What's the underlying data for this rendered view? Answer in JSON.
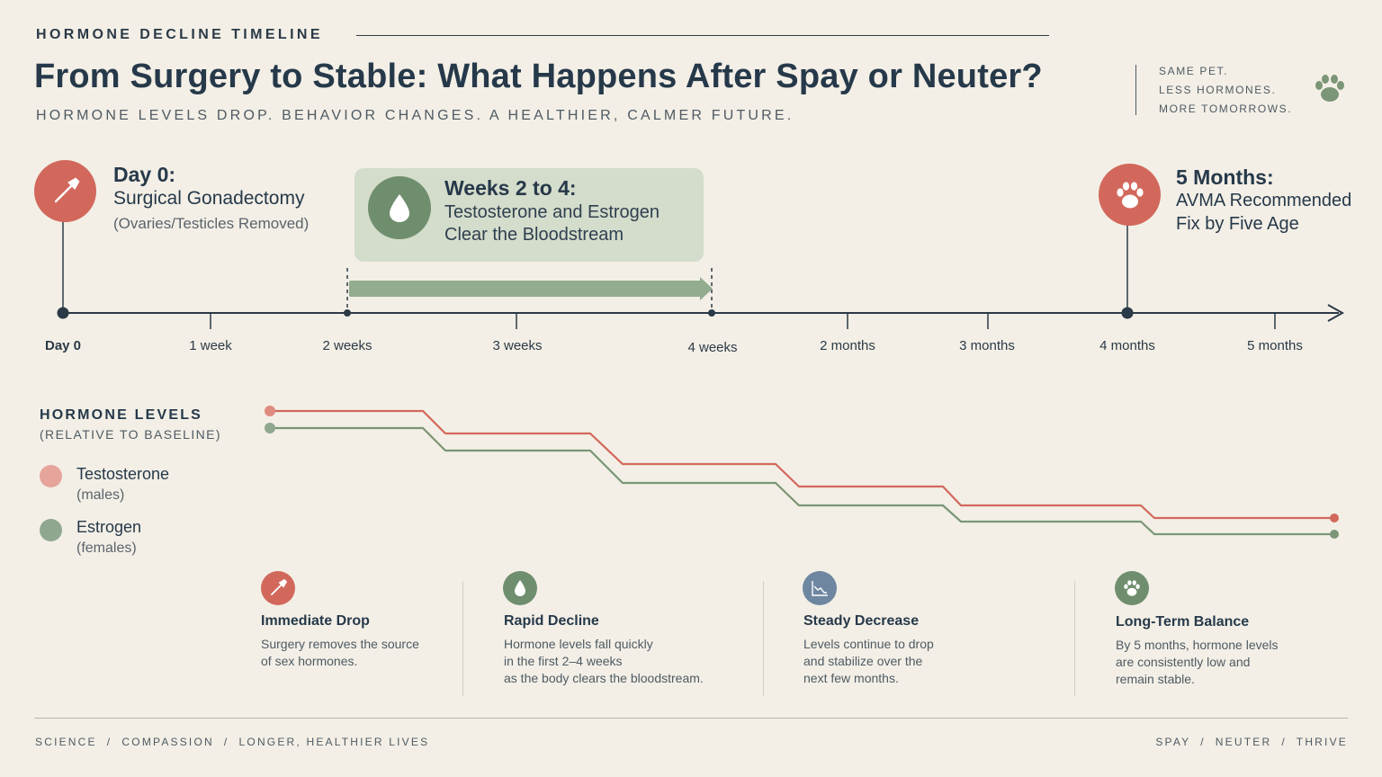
{
  "header": {
    "eyebrow": "HORMONE DECLINE TIMELINE",
    "title": "From Surgery to Stable: What Happens After Spay or Neuter?",
    "subtitle": "HORMONE LEVELS DROP. BEHAVIOR CHANGES. A HEALTHIER, CALMER FUTURE.",
    "tagline": [
      "SAME PET.",
      "LESS HORMONES.",
      "MORE TOMORROWS."
    ]
  },
  "milestones": {
    "day0": {
      "title": "Day 0:",
      "subtitle": "Surgical Gonadectomy",
      "note": "(Ovaries/Testicles Removed)",
      "icon": "scalpel-icon",
      "color": "#d2685c"
    },
    "weeks": {
      "title": "Weeks 2 to 4:",
      "line1": "Testosterone and Estrogen",
      "line2": "Clear the Bloodstream",
      "icon": "droplet-icon",
      "color": "#6f8e6d"
    },
    "months5": {
      "title": "5 Months:",
      "line1": "AVMA Recommended",
      "line2": "Fix by Five Age",
      "icon": "paw-icon",
      "color": "#d2685c"
    }
  },
  "axis": {
    "labels": [
      "Day 0",
      "1 week",
      "2 weeks",
      "3 weeks",
      "4 weeks",
      "2 months",
      "3 months",
      "4 months",
      "5 months"
    ]
  },
  "legend": {
    "title": "HORMONE LEVELS",
    "subtitle": "(RELATIVE TO BASELINE)",
    "items": [
      {
        "name": "Testosterone",
        "note": "(males)",
        "color": "#e6a49b"
      },
      {
        "name": "Estrogen",
        "note": "(females)",
        "color": "#8fa78e"
      }
    ]
  },
  "chart_data": {
    "type": "line",
    "series": [
      {
        "name": "Testosterone",
        "color": "#d2685c",
        "stroke": "#d2685c"
      },
      {
        "name": "Estrogen",
        "color": "#6f8e6d",
        "stroke": "#7a9676"
      }
    ]
  },
  "cards": [
    {
      "title": "Immediate Drop",
      "text": [
        "Surgery removes the source",
        "of sex hormones."
      ],
      "icon": "scalpel-icon",
      "color": "#d2685c"
    },
    {
      "title": "Rapid Decline",
      "text": [
        "Hormone levels fall quickly",
        "in the first 2–4 weeks",
        "as the body clears the bloodstream."
      ],
      "icon": "droplet-icon",
      "color": "#6f8e6d"
    },
    {
      "title": "Steady Decrease",
      "text": [
        "Levels continue to drop",
        "and stabilize over the",
        "next few months."
      ],
      "icon": "chart-icon",
      "color": "#6e86a0"
    },
    {
      "title": "Long-Term Balance",
      "text": [
        "By 5 months, hormone levels",
        "are consistently low and",
        "remain stable."
      ],
      "icon": "paw-icon",
      "color": "#6f8e6d"
    }
  ],
  "footer": {
    "left": "SCIENCE  /  COMPASSION  /  LONGER, HEALTHIER LIVES",
    "right": "SPAY  /  NEUTER  /  THRIVE"
  }
}
